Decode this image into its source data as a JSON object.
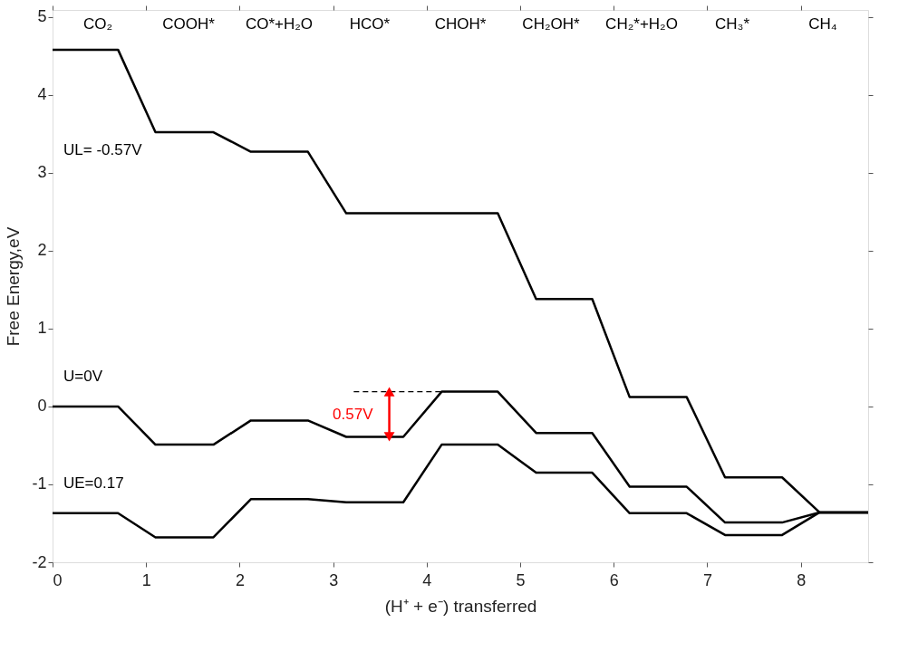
{
  "chart_data": {
    "type": "line",
    "xlabel": "(H⁺ + e⁻) transferred",
    "ylabel": "Free Energy,eV",
    "x": [
      0,
      0.7,
      1.1,
      1.72,
      2.12,
      2.73,
      3.14,
      3.75,
      4.16,
      4.76,
      5.17,
      5.77,
      6.17,
      6.78,
      7.19,
      7.8,
      8.2,
      8.72
    ],
    "series": [
      {
        "color": "#000000",
        "values": [
          4.58,
          4.58,
          3.52,
          3.52,
          3.27,
          3.27,
          2.48,
          2.48,
          2.48,
          2.48,
          1.38,
          1.38,
          0.12,
          0.12,
          -0.91,
          -0.91,
          -1.36,
          -1.36
        ]
      },
      {
        "color": "#000000",
        "values": [
          0,
          0,
          -0.49,
          -0.49,
          -0.18,
          -0.18,
          -0.39,
          -0.39,
          0.19,
          0.19,
          -0.34,
          -0.34,
          -1.03,
          -1.03,
          -1.49,
          -1.49,
          -1.36,
          -1.36
        ]
      },
      {
        "color": "#000000",
        "values": [
          -1.37,
          -1.37,
          -1.68,
          -1.68,
          -1.19,
          -1.19,
          -1.23,
          -1.23,
          -0.49,
          -0.49,
          -0.85,
          -0.85,
          -1.37,
          -1.37,
          -1.65,
          -1.65,
          -1.36,
          -1.36
        ]
      },
      {
        "color": "#000000",
        "line_style": "dashed",
        "x": [
          3.22,
          4.2
        ],
        "values": [
          0.19,
          0.19
        ]
      },
      {
        "name": "0.57V",
        "color": "#ff0000",
        "marker": "triangle",
        "x": [
          3.6,
          3.6
        ],
        "values": [
          -0.39,
          0.19
        ]
      }
    ],
    "annotations": [
      "UL= -0.57V",
      "U=0V",
      "UE=0.17",
      "CO₂",
      "COOH*",
      "CO*+H₂O",
      "HCO*",
      "CHOH*",
      "CH₂OH*",
      "CH₂*+H₂O",
      "CH₃*",
      "CH₄"
    ],
    "xlim": [
      0,
      8.72
    ],
    "xticks": [
      0,
      1,
      2,
      3,
      4,
      5,
      6,
      7,
      8
    ],
    "ylim": [
      -2,
      5.09
    ],
    "yticks": [
      -2,
      -1,
      0,
      1,
      2,
      3,
      4,
      5
    ],
    "grid": false,
    "marker": "none",
    "line_style": "solid"
  }
}
